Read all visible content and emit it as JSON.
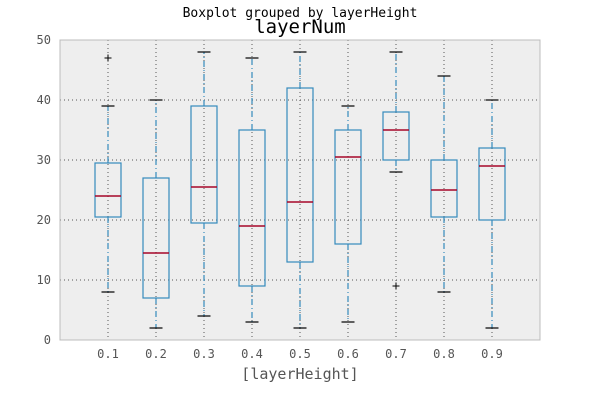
{
  "chart_data": {
    "type": "boxplot",
    "suptitle": "Boxplot grouped by layerHeight",
    "title": "layerNum",
    "xlabel": "[layerHeight]",
    "ylabel": "",
    "ylim": [
      0,
      50
    ],
    "yticks": [
      "0",
      "10",
      "20",
      "30",
      "40",
      "50"
    ],
    "grid": true,
    "colors": {
      "plot_background": "#eeeeee",
      "box": "#348abd",
      "median": "#a60628",
      "whisker": "#348abd",
      "cap": "#000000",
      "flier": "#000000",
      "grid": "#555555",
      "frame": "#bcbcbc"
    },
    "categories": [
      "0.1",
      "0.2",
      "0.3",
      "0.4",
      "0.5",
      "0.6",
      "0.7",
      "0.8",
      "0.9"
    ],
    "boxes": [
      {
        "category": "0.1",
        "whislo": 8,
        "q1": 20.5,
        "med": 24,
        "q3": 29.5,
        "whishi": 39,
        "fliers": [
          47
        ]
      },
      {
        "category": "0.2",
        "whislo": 2,
        "q1": 7,
        "med": 14.5,
        "q3": 27,
        "whishi": 40,
        "fliers": []
      },
      {
        "category": "0.3",
        "whislo": 4,
        "q1": 19.5,
        "med": 25.5,
        "q3": 39,
        "whishi": 48,
        "fliers": []
      },
      {
        "category": "0.4",
        "whislo": 3,
        "q1": 9,
        "med": 19,
        "q3": 35,
        "whishi": 47,
        "fliers": []
      },
      {
        "category": "0.5",
        "whislo": 2,
        "q1": 13,
        "med": 23,
        "q3": 42,
        "whishi": 48,
        "fliers": []
      },
      {
        "category": "0.6",
        "whislo": 3,
        "q1": 16,
        "med": 30.5,
        "q3": 35,
        "whishi": 39,
        "fliers": []
      },
      {
        "category": "0.7",
        "whislo": 28,
        "q1": 30,
        "med": 35,
        "q3": 38,
        "whishi": 48,
        "fliers": [
          9
        ]
      },
      {
        "category": "0.8",
        "whislo": 8,
        "q1": 20.5,
        "med": 25,
        "q3": 30,
        "whishi": 44,
        "fliers": []
      },
      {
        "category": "0.9",
        "whislo": 2,
        "q1": 20,
        "med": 29,
        "q3": 32,
        "whishi": 40,
        "fliers": []
      }
    ]
  }
}
